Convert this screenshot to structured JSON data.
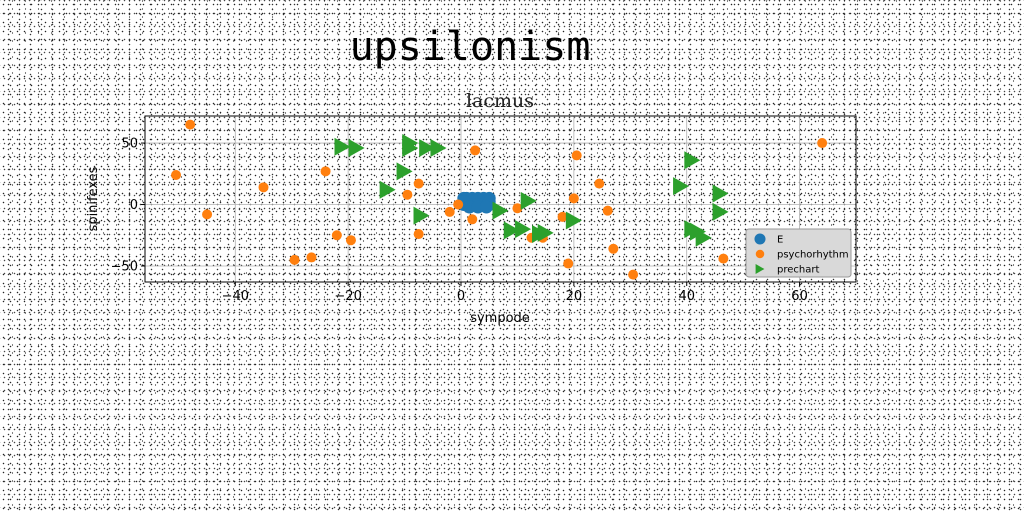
{
  "figure_title": "upsilonism",
  "chart_data": {
    "type": "scatter",
    "title": "lacmus",
    "xlabel": "sympode",
    "ylabel": "spinifexes",
    "xlim": [
      -56,
      70
    ],
    "ylim": [
      -63,
      72
    ],
    "xticks": [
      -40,
      -20,
      0,
      20,
      40,
      60
    ],
    "yticks": [
      -50,
      0,
      50
    ],
    "grid": true,
    "legend_position": "lower right",
    "series": [
      {
        "name": "E",
        "color": "#1f77b4",
        "marker": "circle-large",
        "points": [
          [
            0.5,
            5
          ],
          [
            1,
            5
          ],
          [
            2,
            5
          ],
          [
            3,
            5
          ],
          [
            4,
            5
          ],
          [
            5,
            5
          ],
          [
            0.5,
            0
          ],
          [
            1,
            0
          ],
          [
            2,
            0
          ],
          [
            3,
            0
          ],
          [
            4,
            0
          ],
          [
            5,
            0
          ],
          [
            0.5,
            2.5
          ],
          [
            5,
            2.5
          ],
          [
            1.5,
            -2
          ],
          [
            3,
            -2
          ],
          [
            4.5,
            -2
          ]
        ]
      },
      {
        "name": "psychorhythm",
        "color": "#ff7f0e",
        "marker": "circle",
        "points": [
          [
            -48,
            65
          ],
          [
            -50.5,
            24
          ],
          [
            -45,
            -8
          ],
          [
            -35,
            14
          ],
          [
            -29.5,
            -45
          ],
          [
            -26.5,
            -43
          ],
          [
            -24,
            27
          ],
          [
            -22,
            -25
          ],
          [
            -19.5,
            -29
          ],
          [
            -9.5,
            8
          ],
          [
            -7.5,
            17
          ],
          [
            -7.5,
            -24
          ],
          [
            -2,
            -6
          ],
          [
            -0.5,
            0
          ],
          [
            2,
            -12
          ],
          [
            2.5,
            44
          ],
          [
            10,
            -3
          ],
          [
            12.5,
            -27
          ],
          [
            14.5,
            -27
          ],
          [
            18,
            -10
          ],
          [
            19,
            -48
          ],
          [
            20,
            5
          ],
          [
            20.5,
            40
          ],
          [
            24.5,
            17
          ],
          [
            26,
            -5
          ],
          [
            27,
            -36
          ],
          [
            30.5,
            -57
          ],
          [
            46.5,
            -44
          ],
          [
            64,
            50
          ]
        ]
      },
      {
        "name": "prechart",
        "color": "#2ca02c",
        "marker": "triangle-right",
        "points": [
          [
            -21,
            47
          ],
          [
            -18.5,
            46
          ],
          [
            -9,
            50
          ],
          [
            -9,
            46
          ],
          [
            -6,
            46
          ],
          [
            -4,
            46
          ],
          [
            -10,
            27
          ],
          [
            -13,
            12
          ],
          [
            -7,
            -9
          ],
          [
            7,
            -5
          ],
          [
            9,
            -21
          ],
          [
            11,
            -20
          ],
          [
            12,
            3
          ],
          [
            14,
            -24
          ],
          [
            15,
            -23
          ],
          [
            20,
            -13
          ],
          [
            39,
            15
          ],
          [
            41,
            36
          ],
          [
            41,
            -20
          ],
          [
            42,
            -22
          ],
          [
            43,
            -27
          ],
          [
            46,
            9
          ],
          [
            46,
            -6
          ]
        ]
      }
    ]
  }
}
